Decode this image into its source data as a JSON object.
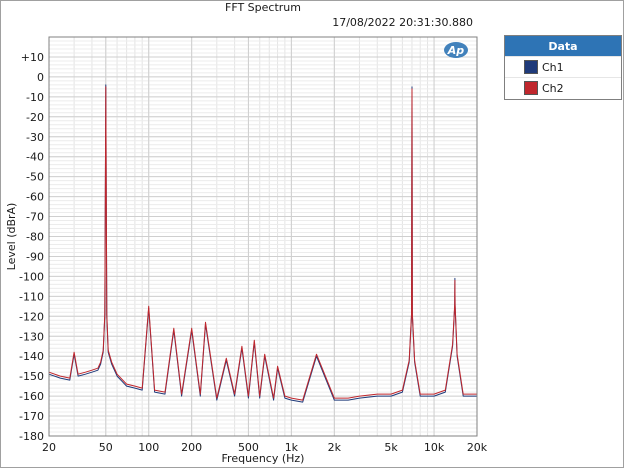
{
  "header": {
    "title": "FFT Spectrum",
    "timestamp": "17/08/2022 20:31:30.880",
    "logo_text": "Ap"
  },
  "legend": {
    "title": "Data",
    "items": [
      {
        "label": "Ch1",
        "color": "#1f3a7a"
      },
      {
        "label": "Ch2",
        "color": "#c0272d"
      }
    ]
  },
  "chart_data": {
    "type": "line",
    "title": "FFT Spectrum",
    "xlabel": "Frequency (Hz)",
    "ylabel": "Level (dBrA)",
    "xscale": "log",
    "xlim": [
      20,
      20000
    ],
    "ylim": [
      -180,
      20
    ],
    "x_ticks": [
      {
        "value": 20,
        "label": "20"
      },
      {
        "value": 50,
        "label": "50"
      },
      {
        "value": 100,
        "label": "100"
      },
      {
        "value": 200,
        "label": "200"
      },
      {
        "value": 500,
        "label": "500"
      },
      {
        "value": 1000,
        "label": "1k"
      },
      {
        "value": 2000,
        "label": "2k"
      },
      {
        "value": 5000,
        "label": "5k"
      },
      {
        "value": 10000,
        "label": "10k"
      },
      {
        "value": 20000,
        "label": "20k"
      }
    ],
    "y_ticks": [
      {
        "value": 10,
        "label": "+10"
      },
      {
        "value": 0,
        "label": "0"
      },
      {
        "value": -10,
        "label": "-10"
      },
      {
        "value": -20,
        "label": "-20"
      },
      {
        "value": -30,
        "label": "-30"
      },
      {
        "value": -40,
        "label": "-40"
      },
      {
        "value": -50,
        "label": "-50"
      },
      {
        "value": -60,
        "label": "-60"
      },
      {
        "value": -70,
        "label": "-70"
      },
      {
        "value": -80,
        "label": "-80"
      },
      {
        "value": -90,
        "label": "-90"
      },
      {
        "value": -100,
        "label": "-100"
      },
      {
        "value": -110,
        "label": "-110"
      },
      {
        "value": -120,
        "label": "-120"
      },
      {
        "value": -130,
        "label": "-130"
      },
      {
        "value": -140,
        "label": "-140"
      },
      {
        "value": -150,
        "label": "-150"
      },
      {
        "value": -160,
        "label": "-160"
      },
      {
        "value": -170,
        "label": "-170"
      },
      {
        "value": -180,
        "label": "-180"
      }
    ],
    "grid": true,
    "legend_position": "right",
    "series": [
      {
        "name": "Ch1",
        "color": "#1f3a7a",
        "points": [
          [
            20,
            -149
          ],
          [
            24,
            -151
          ],
          [
            28,
            -152
          ],
          [
            30,
            -139
          ],
          [
            32,
            -150
          ],
          [
            36,
            -149
          ],
          [
            40,
            -148
          ],
          [
            44,
            -147
          ],
          [
            46,
            -144
          ],
          [
            48,
            -138
          ],
          [
            49.2,
            -120
          ],
          [
            50,
            -4
          ],
          [
            50.8,
            -120
          ],
          [
            52,
            -138
          ],
          [
            55,
            -144
          ],
          [
            60,
            -150
          ],
          [
            70,
            -155
          ],
          [
            80,
            -156
          ],
          [
            90,
            -157
          ],
          [
            100,
            -116
          ],
          [
            110,
            -158
          ],
          [
            130,
            -159
          ],
          [
            150,
            -127
          ],
          [
            170,
            -160
          ],
          [
            200,
            -127
          ],
          [
            230,
            -160
          ],
          [
            250,
            -124
          ],
          [
            300,
            -162
          ],
          [
            350,
            -142
          ],
          [
            400,
            -160
          ],
          [
            450,
            -136
          ],
          [
            500,
            -161
          ],
          [
            550,
            -133
          ],
          [
            600,
            -161
          ],
          [
            650,
            -140
          ],
          [
            750,
            -162
          ],
          [
            800,
            -146
          ],
          [
            900,
            -161
          ],
          [
            1000,
            -162
          ],
          [
            1200,
            -163
          ],
          [
            1500,
            -140
          ],
          [
            2000,
            -162
          ],
          [
            2500,
            -162
          ],
          [
            3000,
            -161
          ],
          [
            4000,
            -160
          ],
          [
            5000,
            -160
          ],
          [
            6000,
            -158
          ],
          [
            6700,
            -143
          ],
          [
            6950,
            -120
          ],
          [
            7000,
            -5
          ],
          [
            7050,
            -120
          ],
          [
            7300,
            -143
          ],
          [
            8000,
            -160
          ],
          [
            10000,
            -160
          ],
          [
            12000,
            -158
          ],
          [
            13500,
            -135
          ],
          [
            13950,
            -115
          ],
          [
            14000,
            -101
          ],
          [
            14050,
            -115
          ],
          [
            14500,
            -140
          ],
          [
            16000,
            -160
          ],
          [
            18000,
            -160
          ],
          [
            20000,
            -160
          ]
        ]
      },
      {
        "name": "Ch2",
        "color": "#c0272d",
        "points": [
          [
            20,
            -148
          ],
          [
            24,
            -150
          ],
          [
            28,
            -151
          ],
          [
            30,
            -138
          ],
          [
            32,
            -149
          ],
          [
            36,
            -148
          ],
          [
            40,
            -147
          ],
          [
            44,
            -146
          ],
          [
            46,
            -143
          ],
          [
            48,
            -137
          ],
          [
            49.2,
            -119
          ],
          [
            50,
            -5
          ],
          [
            50.8,
            -119
          ],
          [
            52,
            -137
          ],
          [
            55,
            -143
          ],
          [
            60,
            -149
          ],
          [
            70,
            -154
          ],
          [
            80,
            -155
          ],
          [
            90,
            -156
          ],
          [
            100,
            -115
          ],
          [
            110,
            -157
          ],
          [
            130,
            -158
          ],
          [
            150,
            -126
          ],
          [
            170,
            -159
          ],
          [
            200,
            -126
          ],
          [
            230,
            -159
          ],
          [
            250,
            -123
          ],
          [
            300,
            -161
          ],
          [
            350,
            -141
          ],
          [
            400,
            -159
          ],
          [
            450,
            -135
          ],
          [
            500,
            -160
          ],
          [
            550,
            -132
          ],
          [
            600,
            -160
          ],
          [
            650,
            -139
          ],
          [
            750,
            -161
          ],
          [
            800,
            -145
          ],
          [
            900,
            -160
          ],
          [
            1000,
            -161
          ],
          [
            1200,
            -162
          ],
          [
            1500,
            -139
          ],
          [
            2000,
            -161
          ],
          [
            2500,
            -161
          ],
          [
            3000,
            -160
          ],
          [
            4000,
            -159
          ],
          [
            5000,
            -159
          ],
          [
            6000,
            -157
          ],
          [
            6700,
            -142
          ],
          [
            6950,
            -119
          ],
          [
            7000,
            -6
          ],
          [
            7050,
            -119
          ],
          [
            7300,
            -142
          ],
          [
            8000,
            -159
          ],
          [
            10000,
            -159
          ],
          [
            12000,
            -157
          ],
          [
            13500,
            -134
          ],
          [
            13950,
            -114
          ],
          [
            14000,
            -102
          ],
          [
            14050,
            -114
          ],
          [
            14500,
            -139
          ],
          [
            16000,
            -159
          ],
          [
            18000,
            -159
          ],
          [
            20000,
            -159
          ]
        ]
      }
    ]
  }
}
